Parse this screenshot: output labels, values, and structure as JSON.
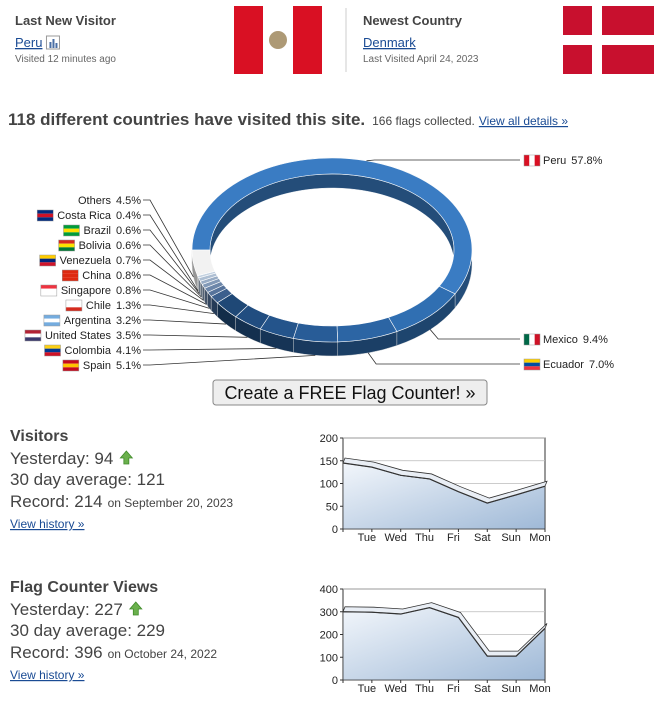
{
  "header": {
    "last_visitor": {
      "title": "Last New Visitor",
      "country": "Peru",
      "visited": "Visited 12 minutes ago"
    },
    "newest_country": {
      "title": "Newest Country",
      "country": "Denmark",
      "visited": "Last Visited April 24, 2023"
    }
  },
  "summary": {
    "headline": "118 different countries have visited this site.",
    "flags": "166 flags collected.",
    "link": "View all details »"
  },
  "chart_data": [
    {
      "type": "pie",
      "categories": [
        "Peru",
        "Mexico",
        "Ecuador",
        "Spain",
        "Colombia",
        "United States",
        "Argentina",
        "Chile",
        "Singapore",
        "China",
        "Venezuela",
        "Bolivia",
        "Brazil",
        "Costa Rica",
        "Others"
      ],
      "values": [
        57.8,
        9.4,
        7.0,
        5.1,
        4.1,
        3.5,
        3.2,
        1.3,
        0.8,
        0.8,
        0.7,
        0.6,
        0.6,
        0.4,
        4.5
      ],
      "value_labels": [
        "57.8%",
        "9.4%",
        "7.0%",
        "5.1%",
        "4.1%",
        "3.5%",
        "3.2%",
        "1.3%",
        "0.8%",
        "0.8%",
        "0.7%",
        "0.6%",
        "0.6%",
        "0.4%",
        "4.5%"
      ],
      "colors": [
        "#3a7cc3",
        "#306fb2",
        "#2c65a4",
        "#285c97",
        "#24548b",
        "#214d80",
        "#1f4876",
        "#3b5f8d",
        "#56739b",
        "#6c86a9",
        "#8299b7",
        "#98acc5",
        "#aebfd3",
        "#c4d2e1",
        "#f2f2f2"
      ]
    },
    {
      "type": "area",
      "categories": [
        null,
        "Tue",
        "Wed",
        "Thu",
        "Fri",
        "Sat",
        "Sun",
        "Mon"
      ],
      "values": [
        145,
        136,
        118,
        110,
        82,
        57,
        75,
        94
      ],
      "ylim": [
        0,
        200
      ],
      "yticks": [
        0,
        50,
        100,
        150,
        200
      ],
      "grid": true,
      "color": "#a3bddb"
    },
    {
      "type": "area",
      "categories": [
        null,
        "Tue",
        "Wed",
        "Thu",
        "Fri",
        "Sat",
        "Sun",
        "Mon"
      ],
      "values": [
        300,
        298,
        290,
        318,
        275,
        105,
        105,
        227
      ],
      "ylim": [
        0,
        400
      ],
      "yticks": [
        0,
        100,
        200,
        300,
        400
      ],
      "grid": true,
      "color": "#a3bddb"
    }
  ],
  "button": "Create a FREE Flag Counter! »",
  "visitors": {
    "title": "Visitors",
    "yesterday": "Yesterday: 94",
    "average": "30 day average: 121",
    "record": "Record: 214",
    "record_date": "on September 20, 2023",
    "link": "View history »"
  },
  "views": {
    "title": "Flag Counter Views",
    "yesterday": "Yesterday: 227",
    "average": "30 day average: 229",
    "record": "Record: 396",
    "record_date": "on October 24, 2022",
    "link": "View history »"
  }
}
